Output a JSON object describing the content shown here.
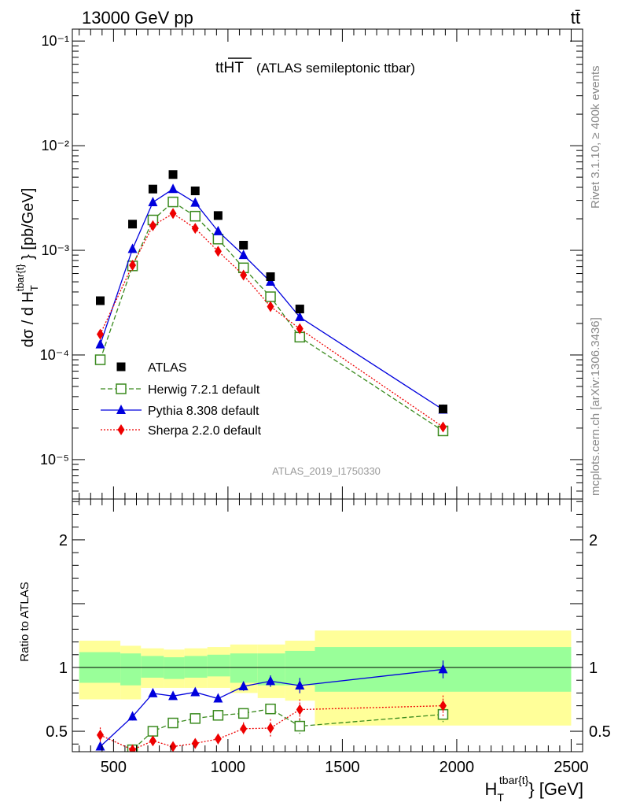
{
  "header": {
    "left": "13000 GeV pp",
    "right": "tt̄"
  },
  "side_labels": {
    "rivet": "Rivet 3.1.10, ≥ 400k events",
    "mcplots": "mcplots.cern.ch [arXiv:1306.3436]"
  },
  "plot_title": {
    "main": "ttHT",
    "sub": "(ATLAS semileptonic ttbar)"
  },
  "analysis_id": "ATLAS_2019_I1750330",
  "chart_data": [
    {
      "type": "scatter",
      "panel": "main",
      "ylabel": "dσ / d H_T^{tbar{t}} [pb/GeV]",
      "yscale": "log",
      "xlim": [
        320,
        2550
      ],
      "ylim": [
        4.2e-06,
        0.13
      ],
      "y_tick_labels": [
        "10⁻⁵",
        "10⁻⁴",
        "10⁻³",
        "10⁻²",
        "10⁻¹"
      ],
      "x": [
        442,
        583,
        672,
        760,
        857,
        957,
        1068,
        1186,
        1314,
        1940
      ],
      "series": [
        {
          "name": "ATLAS",
          "color": "#000000",
          "marker": "filled-square",
          "line": "none",
          "values": [
            0.00033,
            0.00178,
            0.00385,
            0.0053,
            0.0037,
            0.00215,
            0.00112,
            0.00056,
            0.000275,
            3.05e-05
          ]
        },
        {
          "name": "Herwig 7.2.1 default",
          "color": "#3a8a1e",
          "marker": "open-square",
          "line": "dashed",
          "values": [
            9e-05,
            0.00071,
            0.00195,
            0.0029,
            0.00212,
            0.00128,
            0.00068,
            0.00036,
            0.000148,
            1.88e-05
          ]
        },
        {
          "name": "Pythia 8.308 default",
          "color": "#0000dd",
          "marker": "triangle",
          "line": "solid",
          "values": [
            0.000126,
            0.00103,
            0.00288,
            0.00385,
            0.00285,
            0.00152,
            0.0009,
            0.0005,
            0.00023,
            3e-05
          ]
        },
        {
          "name": "Sherpa 2.2.0 default",
          "color": "#ee0000",
          "marker": "diamond",
          "line": "dotted",
          "values": [
            0.000158,
            0.00072,
            0.00172,
            0.00225,
            0.00162,
            0.00098,
            0.00058,
            0.00029,
            0.000178,
            2.05e-05
          ]
        }
      ],
      "legend": {
        "placement": "lower-left"
      }
    },
    {
      "type": "line",
      "panel": "ratio",
      "ylabel": "Ratio to ATLAS",
      "xlabel": "H_T^{tbar{t}} [GeV]",
      "xlim": [
        320,
        2550
      ],
      "ylim": [
        0.34,
        2.32
      ],
      "x_ticks": [
        500,
        1000,
        1500,
        2000,
        2500
      ],
      "y_ticks": [
        0.5,
        1,
        2
      ],
      "y_tick_labels": [
        "0.5",
        "1",
        "2"
      ],
      "bins": [
        [
          350,
          530
        ],
        [
          530,
          620
        ],
        [
          620,
          720
        ],
        [
          720,
          810
        ],
        [
          810,
          910
        ],
        [
          910,
          1010
        ],
        [
          1010,
          1130
        ],
        [
          1130,
          1250
        ],
        [
          1250,
          1380
        ],
        [
          1380,
          2500
        ]
      ],
      "band_inner": [
        [
          0.88,
          1.12
        ],
        [
          0.86,
          1.11
        ],
        [
          0.92,
          1.09
        ],
        [
          0.91,
          1.08
        ],
        [
          0.92,
          1.09
        ],
        [
          0.93,
          1.1
        ],
        [
          0.88,
          1.11
        ],
        [
          0.86,
          1.11
        ],
        [
          0.86,
          1.13
        ],
        [
          0.81,
          1.16
        ]
      ],
      "band_outer": [
        [
          0.75,
          1.21
        ],
        [
          0.75,
          1.17
        ],
        [
          0.84,
          1.15
        ],
        [
          0.84,
          1.14
        ],
        [
          0.84,
          1.15
        ],
        [
          0.84,
          1.16
        ],
        [
          0.8,
          1.18
        ],
        [
          0.76,
          1.18
        ],
        [
          0.74,
          1.21
        ],
        [
          0.545,
          1.29
        ]
      ],
      "reference": 1,
      "x": [
        442,
        583,
        672,
        760,
        857,
        957,
        1068,
        1186,
        1314,
        1940
      ],
      "series": [
        {
          "name": "Herwig 7.2.1 default",
          "color": "#3a8a1e",
          "marker": "open-square",
          "line": "dashed",
          "values": [
            0.27,
            0.355,
            0.5,
            0.565,
            0.6,
            0.625,
            0.64,
            0.675,
            0.54,
            0.632
          ],
          "errors": [
            0.02,
            0.02,
            0.02,
            0.02,
            0.02,
            0.02,
            0.025,
            0.04,
            0.06,
            0.06
          ]
        },
        {
          "name": "Pythia 8.308 default",
          "color": "#0000dd",
          "marker": "triangle",
          "line": "solid",
          "values": [
            0.38,
            0.615,
            0.797,
            0.776,
            0.806,
            0.756,
            0.852,
            0.893,
            0.858,
            0.985
          ],
          "errors": [
            0.02,
            0.03,
            0.025,
            0.02,
            0.02,
            0.03,
            0.035,
            0.045,
            0.06,
            0.07
          ]
        },
        {
          "name": "Sherpa 2.2.0 default",
          "color": "#ee0000",
          "marker": "diamond",
          "line": "dotted",
          "values": [
            0.47,
            0.355,
            0.425,
            0.38,
            0.405,
            0.44,
            0.52,
            0.525,
            0.67,
            0.7
          ],
          "errors": [
            0.06,
            0.03,
            0.03,
            0.025,
            0.025,
            0.04,
            0.05,
            0.07,
            0.08,
            0.08
          ]
        }
      ]
    }
  ]
}
